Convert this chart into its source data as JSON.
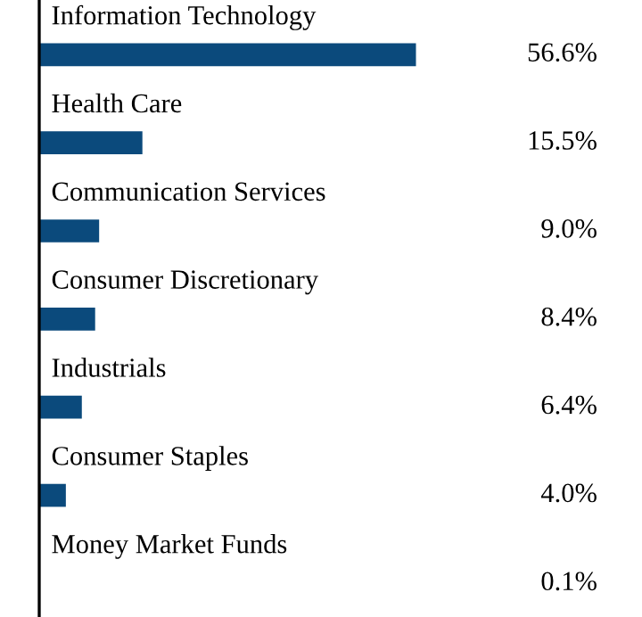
{
  "chart_data": {
    "type": "bar",
    "orientation": "horizontal",
    "categories": [
      "Information Technology",
      "Health Care",
      "Communication Services",
      "Consumer Discretionary",
      "Industrials",
      "Consumer Staples",
      "Money Market Funds"
    ],
    "values": [
      56.6,
      15.5,
      9.0,
      8.4,
      6.4,
      4.0,
      0.1
    ],
    "value_labels": [
      "56.6%",
      "15.5%",
      "9.0%",
      "8.4%",
      "6.4%",
      "4.0%",
      "0.1%"
    ],
    "color": "#0b4a7c"
  }
}
